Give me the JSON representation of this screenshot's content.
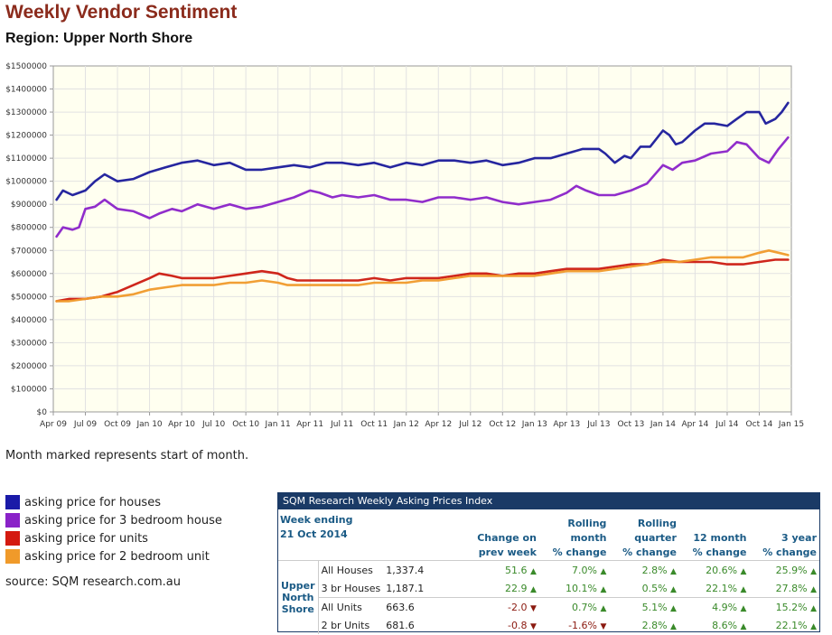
{
  "header": {
    "title": "Weekly Vendor Sentiment",
    "subtitle": "Region: Upper North Shore"
  },
  "chart_data": {
    "type": "line",
    "ylim": [
      0,
      1500000
    ],
    "y_ticks": [
      "$0",
      "$100000",
      "$200000",
      "$300000",
      "$400000",
      "$500000",
      "$600000",
      "$700000",
      "$800000",
      "$900000",
      "$1000000",
      "$1100000",
      "$1200000",
      "$1300000",
      "$1400000",
      "$1500000"
    ],
    "x_ticks": [
      "Apr 09",
      "Jul 09",
      "Oct 09",
      "Jan 10",
      "Apr 10",
      "Jul 10",
      "Oct 10",
      "Jan 11",
      "Apr 11",
      "Jul 11",
      "Oct 11",
      "Jan 12",
      "Apr 12",
      "Jul 12",
      "Oct 12",
      "Jan 13",
      "Apr 13",
      "Jul 13",
      "Oct 13",
      "Jan 14",
      "Apr 14",
      "Jul 14",
      "Oct 14",
      "Jan 15"
    ],
    "grid": true,
    "series": [
      {
        "name": "asking price for houses",
        "color": "#1a1a9a",
        "points": [
          [
            0.1,
            920000
          ],
          [
            0.3,
            960000
          ],
          [
            0.6,
            940000
          ],
          [
            1,
            960000
          ],
          [
            1.3,
            1000000
          ],
          [
            1.6,
            1030000
          ],
          [
            2,
            1000000
          ],
          [
            2.5,
            1010000
          ],
          [
            3,
            1040000
          ],
          [
            3.5,
            1060000
          ],
          [
            4,
            1080000
          ],
          [
            4.5,
            1090000
          ],
          [
            5,
            1070000
          ],
          [
            5.5,
            1080000
          ],
          [
            6,
            1050000
          ],
          [
            6.5,
            1050000
          ],
          [
            7,
            1060000
          ],
          [
            7.5,
            1070000
          ],
          [
            8,
            1060000
          ],
          [
            8.5,
            1080000
          ],
          [
            9,
            1080000
          ],
          [
            9.5,
            1070000
          ],
          [
            10,
            1080000
          ],
          [
            10.5,
            1060000
          ],
          [
            11,
            1080000
          ],
          [
            11.5,
            1070000
          ],
          [
            12,
            1090000
          ],
          [
            12.5,
            1090000
          ],
          [
            13,
            1080000
          ],
          [
            13.5,
            1090000
          ],
          [
            14,
            1070000
          ],
          [
            14.5,
            1080000
          ],
          [
            15,
            1100000
          ],
          [
            15.5,
            1100000
          ],
          [
            16,
            1120000
          ],
          [
            16.5,
            1140000
          ],
          [
            17,
            1140000
          ],
          [
            17.2,
            1120000
          ],
          [
            17.5,
            1080000
          ],
          [
            17.8,
            1110000
          ],
          [
            18,
            1100000
          ],
          [
            18.3,
            1150000
          ],
          [
            18.6,
            1150000
          ],
          [
            19,
            1220000
          ],
          [
            19.2,
            1200000
          ],
          [
            19.4,
            1160000
          ],
          [
            19.6,
            1170000
          ],
          [
            20,
            1220000
          ],
          [
            20.3,
            1250000
          ],
          [
            20.6,
            1250000
          ],
          [
            21,
            1240000
          ],
          [
            21.3,
            1270000
          ],
          [
            21.6,
            1300000
          ],
          [
            22,
            1300000
          ],
          [
            22.2,
            1250000
          ],
          [
            22.5,
            1270000
          ],
          [
            22.7,
            1300000
          ],
          [
            22.9,
            1340000
          ]
        ]
      },
      {
        "name": "asking price for 3 bedroom house",
        "color": "#8a22c8",
        "points": [
          [
            0.1,
            760000
          ],
          [
            0.3,
            800000
          ],
          [
            0.6,
            790000
          ],
          [
            0.8,
            800000
          ],
          [
            1,
            880000
          ],
          [
            1.3,
            890000
          ],
          [
            1.6,
            920000
          ],
          [
            2,
            880000
          ],
          [
            2.5,
            870000
          ],
          [
            3,
            840000
          ],
          [
            3.3,
            860000
          ],
          [
            3.7,
            880000
          ],
          [
            4,
            870000
          ],
          [
            4.5,
            900000
          ],
          [
            5,
            880000
          ],
          [
            5.5,
            900000
          ],
          [
            6,
            880000
          ],
          [
            6.5,
            890000
          ],
          [
            7,
            910000
          ],
          [
            7.5,
            930000
          ],
          [
            8,
            960000
          ],
          [
            8.3,
            950000
          ],
          [
            8.7,
            930000
          ],
          [
            9,
            940000
          ],
          [
            9.5,
            930000
          ],
          [
            10,
            940000
          ],
          [
            10.5,
            920000
          ],
          [
            11,
            920000
          ],
          [
            11.5,
            910000
          ],
          [
            12,
            930000
          ],
          [
            12.5,
            930000
          ],
          [
            13,
            920000
          ],
          [
            13.5,
            930000
          ],
          [
            14,
            910000
          ],
          [
            14.5,
            900000
          ],
          [
            15,
            910000
          ],
          [
            15.5,
            920000
          ],
          [
            16,
            950000
          ],
          [
            16.3,
            980000
          ],
          [
            16.6,
            960000
          ],
          [
            17,
            940000
          ],
          [
            17.5,
            940000
          ],
          [
            18,
            960000
          ],
          [
            18.5,
            990000
          ],
          [
            19,
            1070000
          ],
          [
            19.3,
            1050000
          ],
          [
            19.6,
            1080000
          ],
          [
            20,
            1090000
          ],
          [
            20.5,
            1120000
          ],
          [
            21,
            1130000
          ],
          [
            21.3,
            1170000
          ],
          [
            21.6,
            1160000
          ],
          [
            22,
            1100000
          ],
          [
            22.3,
            1080000
          ],
          [
            22.6,
            1140000
          ],
          [
            22.9,
            1190000
          ]
        ]
      },
      {
        "name": "asking price for units",
        "color": "#cc1a10",
        "points": [
          [
            0.1,
            480000
          ],
          [
            0.5,
            490000
          ],
          [
            1,
            490000
          ],
          [
            1.5,
            500000
          ],
          [
            2,
            520000
          ],
          [
            2.5,
            550000
          ],
          [
            3,
            580000
          ],
          [
            3.3,
            600000
          ],
          [
            3.7,
            590000
          ],
          [
            4,
            580000
          ],
          [
            4.5,
            580000
          ],
          [
            5,
            580000
          ],
          [
            5.5,
            590000
          ],
          [
            6,
            600000
          ],
          [
            6.5,
            610000
          ],
          [
            7,
            600000
          ],
          [
            7.3,
            580000
          ],
          [
            7.6,
            570000
          ],
          [
            8,
            570000
          ],
          [
            8.5,
            570000
          ],
          [
            9,
            570000
          ],
          [
            9.5,
            570000
          ],
          [
            10,
            580000
          ],
          [
            10.5,
            570000
          ],
          [
            11,
            580000
          ],
          [
            11.5,
            580000
          ],
          [
            12,
            580000
          ],
          [
            12.5,
            590000
          ],
          [
            13,
            600000
          ],
          [
            13.5,
            600000
          ],
          [
            14,
            590000
          ],
          [
            14.5,
            600000
          ],
          [
            15,
            600000
          ],
          [
            15.5,
            610000
          ],
          [
            16,
            620000
          ],
          [
            16.5,
            620000
          ],
          [
            17,
            620000
          ],
          [
            17.5,
            630000
          ],
          [
            18,
            640000
          ],
          [
            18.5,
            640000
          ],
          [
            19,
            660000
          ],
          [
            19.5,
            650000
          ],
          [
            20,
            650000
          ],
          [
            20.5,
            650000
          ],
          [
            21,
            640000
          ],
          [
            21.5,
            640000
          ],
          [
            22,
            650000
          ],
          [
            22.5,
            660000
          ],
          [
            22.9,
            660000
          ]
        ]
      },
      {
        "name": "asking price for 2 bedroom unit",
        "color": "#f09a2a",
        "points": [
          [
            0.1,
            480000
          ],
          [
            0.5,
            480000
          ],
          [
            1,
            490000
          ],
          [
            1.5,
            500000
          ],
          [
            2,
            500000
          ],
          [
            2.5,
            510000
          ],
          [
            3,
            530000
          ],
          [
            3.5,
            540000
          ],
          [
            4,
            550000
          ],
          [
            4.5,
            550000
          ],
          [
            5,
            550000
          ],
          [
            5.5,
            560000
          ],
          [
            6,
            560000
          ],
          [
            6.5,
            570000
          ],
          [
            7,
            560000
          ],
          [
            7.3,
            550000
          ],
          [
            7.6,
            550000
          ],
          [
            8,
            550000
          ],
          [
            8.5,
            550000
          ],
          [
            9,
            550000
          ],
          [
            9.5,
            550000
          ],
          [
            10,
            560000
          ],
          [
            10.5,
            560000
          ],
          [
            11,
            560000
          ],
          [
            11.5,
            570000
          ],
          [
            12,
            570000
          ],
          [
            12.5,
            580000
          ],
          [
            13,
            590000
          ],
          [
            13.5,
            590000
          ],
          [
            14,
            590000
          ],
          [
            14.5,
            590000
          ],
          [
            15,
            590000
          ],
          [
            15.5,
            600000
          ],
          [
            16,
            610000
          ],
          [
            16.5,
            610000
          ],
          [
            17,
            610000
          ],
          [
            17.5,
            620000
          ],
          [
            18,
            630000
          ],
          [
            18.5,
            640000
          ],
          [
            19,
            650000
          ],
          [
            19.5,
            650000
          ],
          [
            20,
            660000
          ],
          [
            20.5,
            670000
          ],
          [
            21,
            670000
          ],
          [
            21.5,
            670000
          ],
          [
            22,
            690000
          ],
          [
            22.3,
            700000
          ],
          [
            22.6,
            690000
          ],
          [
            22.9,
            680000
          ]
        ]
      }
    ]
  },
  "note": "Month marked represents start of month.",
  "legend": [
    "asking price for houses",
    "asking price for 3 bedroom house",
    "asking price for units",
    "asking price for 2 bedroom unit"
  ],
  "source": "source: SQM research.com.au",
  "table": {
    "title": "SQM Research Weekly Asking Prices Index",
    "week_label_1": "Week ending",
    "week_label_2": "21 Oct 2014",
    "col_prev_1": "Change on",
    "col_prev_2": "prev week",
    "col_month_1": "Rolling",
    "col_month_2": "month",
    "col_month_3": "% change",
    "col_quarter_1": "Rolling",
    "col_quarter_2": "quarter",
    "col_quarter_3": "% change",
    "col_12m_1": "12 month",
    "col_12m_2": "% change",
    "col_3y_1": "3 year",
    "col_3y_2": "% change",
    "region": "Upper North Shore",
    "rows": [
      {
        "name": "All Houses",
        "value": "1,337.4",
        "prev": "51.6",
        "month": "7.0%",
        "quarter": "2.8%",
        "y12": "20.6%",
        "y3": "25.9%"
      },
      {
        "name": "3 br Houses",
        "value": "1,187.1",
        "prev": "22.9",
        "month": "10.1%",
        "quarter": "0.5%",
        "y12": "22.1%",
        "y3": "27.8%"
      },
      {
        "name": "All Units",
        "value": "663.6",
        "prev": "-2.0",
        "month": "0.7%",
        "quarter": "5.1%",
        "y12": "4.9%",
        "y3": "15.2%"
      },
      {
        "name": "2 br Units",
        "value": "681.6",
        "prev": "-0.8",
        "month": "-1.6%",
        "quarter": "2.8%",
        "y12": "8.6%",
        "y3": "22.1%"
      }
    ]
  }
}
